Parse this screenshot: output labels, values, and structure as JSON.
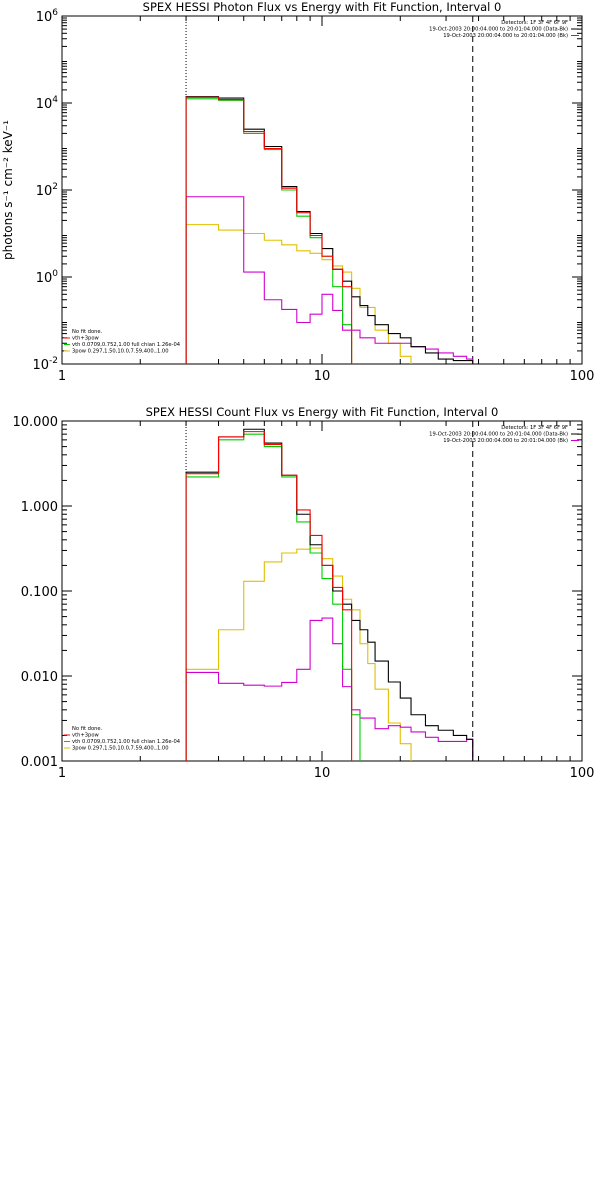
{
  "chart_data": [
    {
      "type": "line",
      "title": "SPEX HESSI Photon Flux vs Energy with Fit Function, Interval 0",
      "ylabel": "photons s⁻¹ cm⁻² keV⁻¹",
      "xlabel": "",
      "xscale": "log",
      "yscale": "log",
      "xlim": [
        1,
        100
      ],
      "ylim": [
        0.01,
        1000000
      ],
      "grid": false,
      "x_ticks": [
        {
          "v": 1,
          "label": "1"
        },
        {
          "v": 10,
          "label": "10"
        },
        {
          "v": 100,
          "label": "100"
        }
      ],
      "y_ticks": [
        {
          "v": 0.01,
          "base": "10",
          "exp": "-2"
        },
        {
          "v": 1,
          "base": "10",
          "exp": "0"
        },
        {
          "v": 100,
          "base": "10",
          "exp": "2"
        },
        {
          "v": 10000,
          "base": "10",
          "exp": "4"
        },
        {
          "v": 1000000,
          "base": "10",
          "exp": "6"
        }
      ],
      "info_text": [
        "Detectors: 1F 3F 4F 6F 9F",
        "19-Oct-2003 20:00:04.000 to 20:01:04.000 (Data-Bk)",
        "19-Oct-2003 20:00:04.000 to 20:01:04.000 (Bk)"
      ],
      "info_colors": [
        "#000000",
        "#000000",
        "#d000d0"
      ],
      "legend_text": [
        "No fit done.",
        "vth+3pow",
        "vth 0.0709,0.752,1.00  full chian 1.26e-04",
        "3pow 0.297,1.50,10.0,7.59,400.,1.00"
      ],
      "legend_colors": [
        "#ff0000",
        "#00cc00",
        "#e0c000"
      ],
      "vlines": [
        {
          "x": 3,
          "style": "dotted"
        },
        {
          "x": 38,
          "style": "dashed"
        }
      ],
      "series": [
        {
          "color": "#000000",
          "edges": [
            3,
            4,
            5,
            6,
            7,
            8,
            9,
            10,
            11,
            12,
            13,
            14,
            15,
            16,
            18,
            20,
            22,
            25,
            28,
            32,
            36,
            38
          ],
          "values": [
            14000,
            13000,
            2500,
            1000,
            120,
            32,
            10,
            4.5,
            1.5,
            0.8,
            0.35,
            0.22,
            0.13,
            0.08,
            0.05,
            0.04,
            0.025,
            0.018,
            0.013,
            0.012,
            0.012
          ]
        },
        {
          "color": "#ff0000",
          "edges": [
            3,
            4,
            5,
            6,
            7,
            8,
            9,
            10,
            11,
            12,
            13
          ],
          "values": [
            13500,
            12000,
            2200,
            900,
            110,
            30,
            9,
            3,
            1.5,
            0.6
          ]
        },
        {
          "color": "#00cc00",
          "edges": [
            3,
            4,
            5,
            6,
            7,
            8,
            9,
            10,
            11,
            12,
            13
          ],
          "values": [
            12500,
            11500,
            2000,
            850,
            100,
            25,
            8,
            3,
            0.6,
            0.08
          ]
        },
        {
          "color": "#e0c000",
          "edges": [
            3,
            4,
            5,
            6,
            7,
            8,
            9,
            10,
            11,
            12,
            13,
            14,
            16,
            18,
            20,
            22
          ],
          "values": [
            16,
            12,
            10,
            7,
            5.5,
            4,
            3.5,
            2.5,
            1.8,
            1.3,
            0.55,
            0.2,
            0.06,
            0.03,
            0.015
          ]
        },
        {
          "color": "#d000d0",
          "edges": [
            3,
            4,
            5,
            6,
            7,
            8,
            9,
            10,
            11,
            12,
            14,
            16,
            18,
            20,
            22,
            25,
            28,
            32,
            36,
            38
          ],
          "values": [
            70,
            70,
            1.3,
            0.3,
            0.18,
            0.09,
            0.14,
            0.4,
            0.17,
            0.06,
            0.04,
            0.03,
            0.03,
            0.03,
            0.025,
            0.022,
            0.018,
            0.015,
            0.013
          ]
        }
      ]
    },
    {
      "type": "line",
      "title": "SPEX HESSI Count Flux vs Energy with Fit Function, Interval 0",
      "ylabel": "",
      "xlabel": "",
      "xscale": "log",
      "yscale": "log",
      "xlim": [
        1,
        100
      ],
      "ylim": [
        0.001,
        10
      ],
      "grid": false,
      "x_ticks": [
        {
          "v": 1,
          "label": "1"
        },
        {
          "v": 10,
          "label": "10"
        },
        {
          "v": 100,
          "label": "100"
        }
      ],
      "y_ticks": [
        {
          "v": 0.001,
          "label": "0.001"
        },
        {
          "v": 0.01,
          "label": "0.010"
        },
        {
          "v": 0.1,
          "label": "0.100"
        },
        {
          "v": 1,
          "label": "1.000"
        },
        {
          "v": 10,
          "label": "10.000"
        }
      ],
      "info_text": [
        "Detectors: 1F 3F 4F 6F 9F",
        "19-Oct-2003 20:00:04.000 to 20:01:04.000 (Data-Bk)",
        "19-Oct-2003 20:00:04.000 to 20:01:04.000 (Bk)"
      ],
      "info_colors": [
        "#000000",
        "#000000",
        "#d000d0"
      ],
      "legend_text": [
        "No fit done.",
        "vth+3pow",
        "vth 0.0709,0.752,1.00  full chian 1.26e-04",
        "3pow 0.297,1.50,10.0,7.59,400.,1.00"
      ],
      "legend_colors": [
        "#ff0000",
        "#00cc00",
        "#e0c000"
      ],
      "vlines": [
        {
          "x": 3,
          "style": "dotted"
        },
        {
          "x": 38,
          "style": "dashed"
        }
      ],
      "series": [
        {
          "color": "#000000",
          "edges": [
            3,
            4,
            5,
            6,
            7,
            8,
            9,
            10,
            11,
            12,
            13,
            14,
            15,
            16,
            18,
            20,
            22,
            25,
            28,
            32,
            36,
            38
          ],
          "values": [
            2.5,
            6.5,
            8.0,
            5.5,
            2.3,
            0.8,
            0.35,
            0.2,
            0.1,
            0.07,
            0.045,
            0.035,
            0.025,
            0.015,
            0.0085,
            0.0055,
            0.0035,
            0.0026,
            0.0023,
            0.002,
            0.0018
          ]
        },
        {
          "color": "#ff0000",
          "edges": [
            3,
            4,
            5,
            6,
            7,
            8,
            9,
            10,
            11,
            12,
            13
          ],
          "values": [
            2.4,
            6.5,
            7.5,
            5.3,
            2.3,
            0.9,
            0.45,
            0.2,
            0.11,
            0.06
          ]
        },
        {
          "color": "#00cc00",
          "edges": [
            3,
            4,
            5,
            6,
            7,
            8,
            9,
            10,
            11,
            12,
            13,
            14
          ],
          "values": [
            2.2,
            6.0,
            7.0,
            5.0,
            2.2,
            0.65,
            0.28,
            0.14,
            0.07,
            0.012,
            0.0035
          ]
        },
        {
          "color": "#e0c000",
          "edges": [
            3,
            4,
            5,
            6,
            7,
            8,
            9,
            10,
            11,
            12,
            13,
            14,
            15,
            16,
            18,
            20,
            22
          ],
          "values": [
            0.012,
            0.035,
            0.13,
            0.22,
            0.28,
            0.31,
            0.32,
            0.24,
            0.15,
            0.08,
            0.06,
            0.024,
            0.014,
            0.007,
            0.0028,
            0.0016
          ]
        },
        {
          "color": "#d000d0",
          "edges": [
            3,
            4,
            5,
            6,
            7,
            8,
            9,
            10,
            11,
            12,
            13,
            14,
            16,
            18,
            20,
            22,
            25,
            28,
            32,
            36,
            38
          ],
          "values": [
            0.011,
            0.0082,
            0.0078,
            0.0076,
            0.0084,
            0.012,
            0.045,
            0.048,
            0.024,
            0.0075,
            0.004,
            0.0032,
            0.0024,
            0.0026,
            0.0025,
            0.0022,
            0.0019,
            0.0017,
            0.0017,
            0.0018
          ]
        }
      ]
    }
  ]
}
